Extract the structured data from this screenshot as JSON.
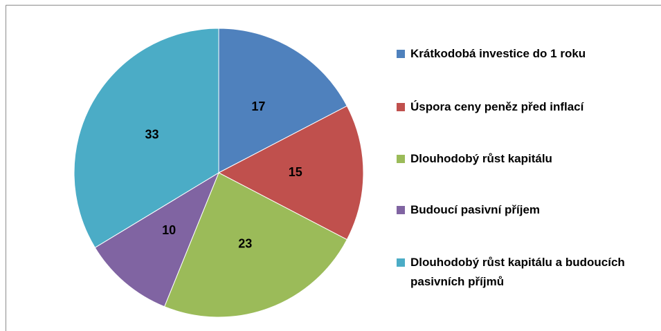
{
  "chart_data": {
    "type": "pie",
    "categories": [
      "Krátkodobá investice do 1 roku",
      "Úspora ceny peněz před inflací",
      "Dlouhodobý růst kapitálu",
      "Budoucí pasivní příjem",
      "Dlouhodobý růst kapitálu a budoucích pasivních příjmů"
    ],
    "values": [
      17,
      15,
      23,
      10,
      33
    ],
    "colors": [
      "#4F81BD",
      "#C0504D",
      "#9BBB59",
      "#8064A2",
      "#4BACC6"
    ],
    "legend": "right"
  }
}
